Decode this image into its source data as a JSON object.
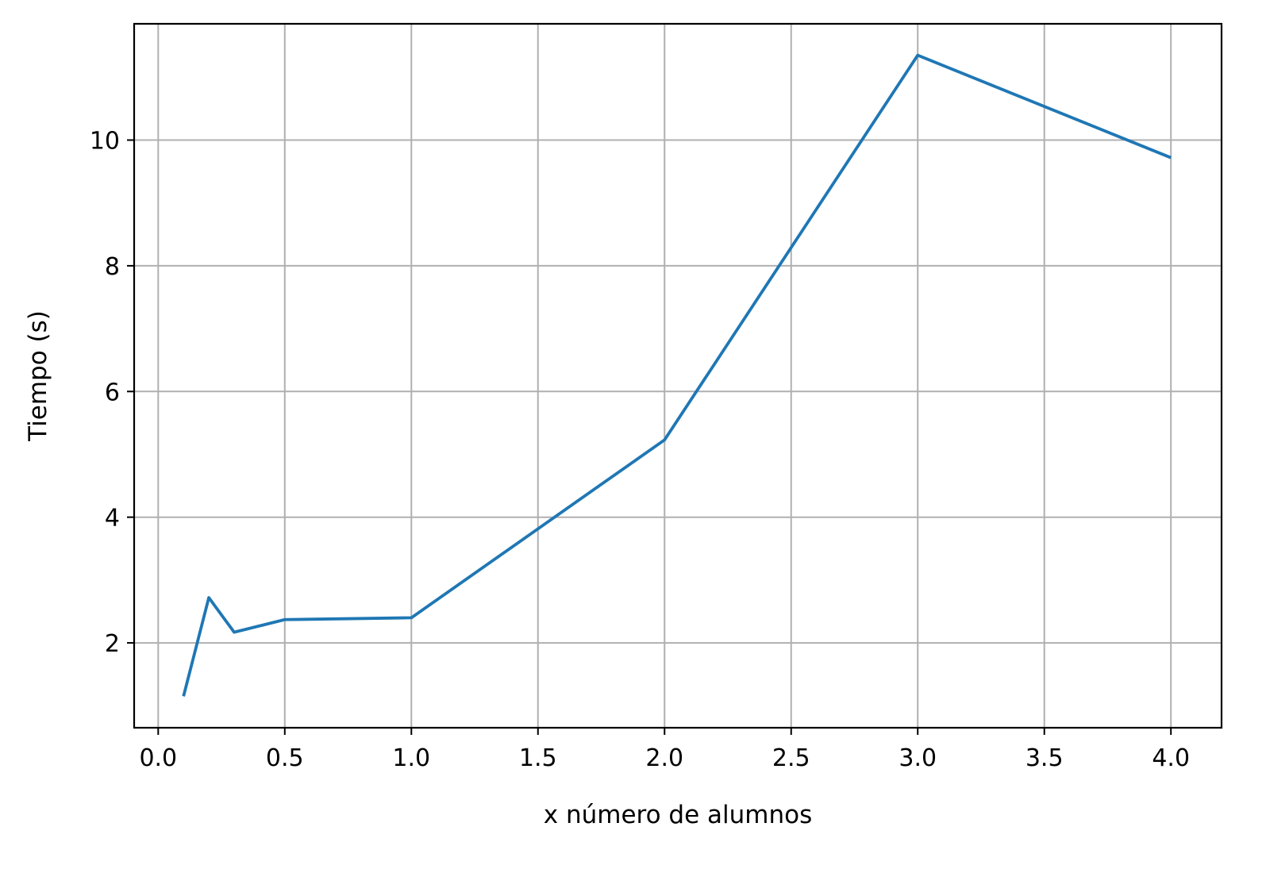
{
  "chart_data": {
    "type": "line",
    "title": "",
    "xlabel": "x número de alumnos",
    "ylabel": "Tiempo (s)",
    "xlim": [
      -0.095,
      4.2
    ],
    "ylim": [
      0.65,
      11.85
    ],
    "grid": true,
    "x_ticks": [
      0.0,
      0.5,
      1.0,
      1.5,
      2.0,
      2.5,
      3.0,
      3.5,
      4.0
    ],
    "x_tick_labels": [
      "0.0",
      "0.5",
      "1.0",
      "1.5",
      "2.0",
      "2.5",
      "3.0",
      "3.5",
      "4.0"
    ],
    "y_ticks": [
      2,
      4,
      6,
      8,
      10
    ],
    "y_tick_labels": [
      "2",
      "4",
      "6",
      "8",
      "10"
    ],
    "series": [
      {
        "color": "#1f77b4",
        "x": [
          0.1,
          0.2,
          0.3,
          0.5,
          1.0,
          2.0,
          3.0,
          4.0
        ],
        "y": [
          1.15,
          2.72,
          2.17,
          2.37,
          2.4,
          5.23,
          11.35,
          9.72
        ]
      }
    ]
  }
}
